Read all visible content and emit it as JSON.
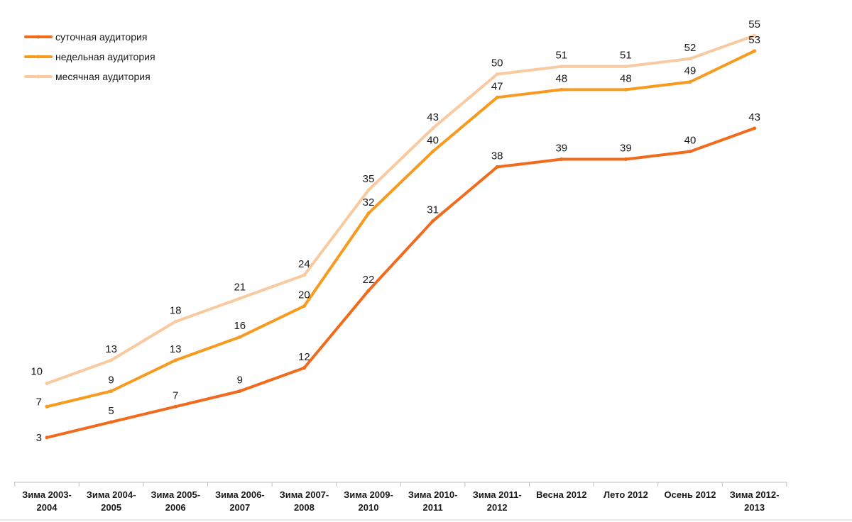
{
  "chart_data": {
    "type": "line",
    "title": "",
    "xlabel": "",
    "ylabel": "",
    "ylim": [
      0,
      55
    ],
    "grid": false,
    "legend_position": "top-left",
    "categories": [
      [
        "Зима 2003-",
        "2004"
      ],
      [
        "Зима 2004-",
        "2005"
      ],
      [
        "Зима 2005-",
        "2006"
      ],
      [
        "Зима 2006-",
        "2007"
      ],
      [
        "Зима 2007-",
        "2008"
      ],
      [
        "Зима 2009-",
        "2010"
      ],
      [
        "Зима 2010-",
        "2011"
      ],
      [
        "Зима 2011-",
        "2012"
      ],
      [
        "Весна 2012"
      ],
      [
        "Лето 2012"
      ],
      [
        "Осень 2012"
      ],
      [
        "Зима 2012-",
        "2013"
      ]
    ],
    "series": [
      {
        "name": "суточная аудитория",
        "color": "#F26A1B",
        "values": [
          3,
          5,
          7,
          9,
          12,
          22,
          31,
          38,
          39,
          39,
          40,
          43
        ]
      },
      {
        "name": "недельная аудитория",
        "color": "#F79A1E",
        "values": [
          7,
          9,
          13,
          16,
          20,
          32,
          40,
          47,
          48,
          48,
          49,
          53
        ]
      },
      {
        "name": "месячная аудитория",
        "color": "#F9C9A0",
        "values": [
          10,
          13,
          18,
          21,
          24,
          35,
          43,
          50,
          51,
          51,
          52,
          55
        ]
      }
    ]
  }
}
